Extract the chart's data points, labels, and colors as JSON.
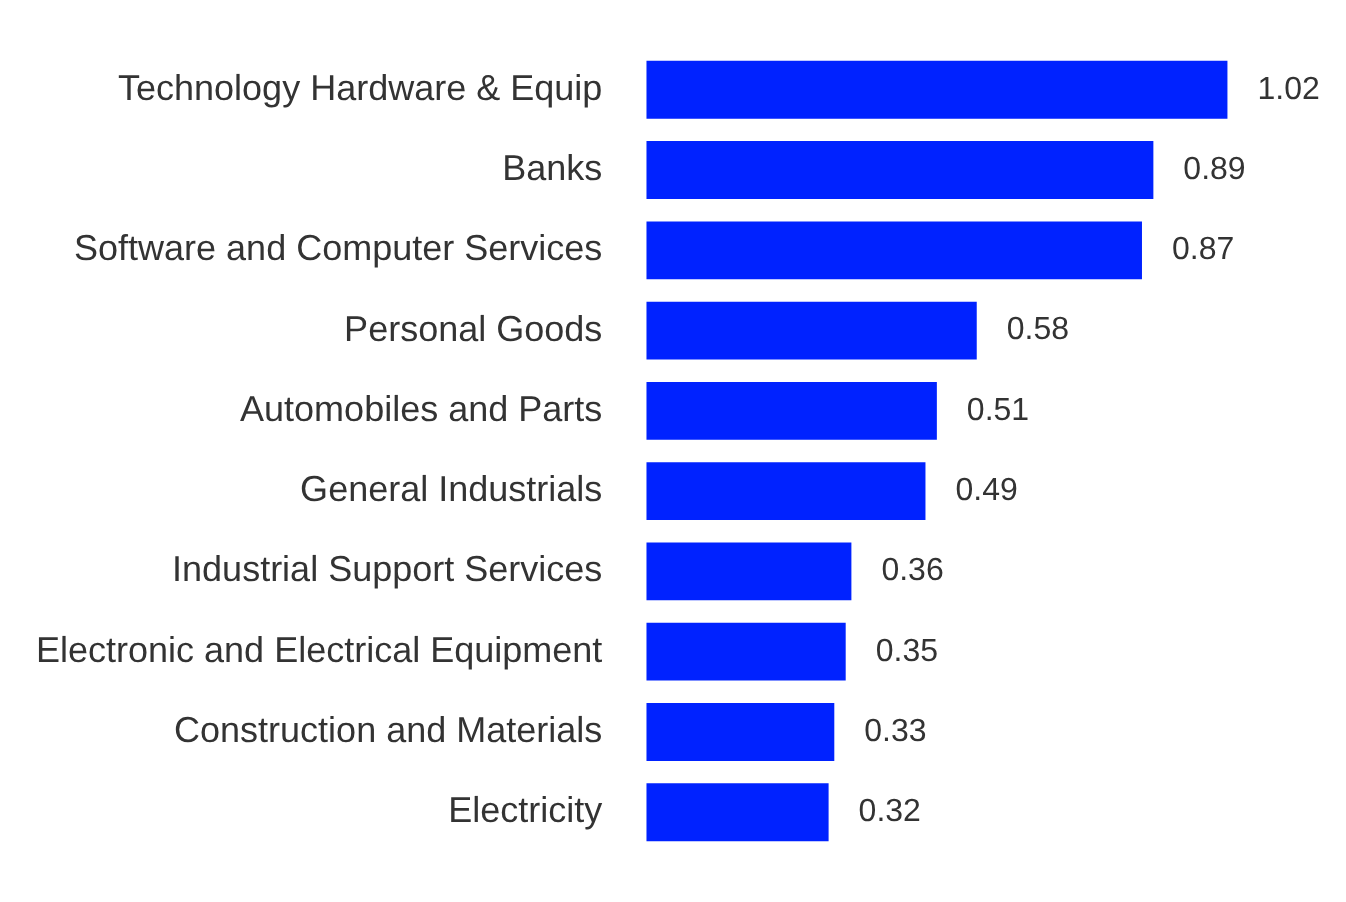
{
  "chart_data": {
    "type": "bar",
    "orientation": "horizontal",
    "categories": [
      "Technology Hardware & Equip",
      "Banks",
      "Software and Computer Services",
      "Personal Goods",
      "Automobiles and Parts",
      "General Industrials",
      "Industrial Support Services",
      "Electronic and Electrical Equipment",
      "Construction and Materials",
      "Electricity"
    ],
    "values": [
      1.02,
      0.89,
      0.87,
      0.58,
      0.51,
      0.49,
      0.36,
      0.35,
      0.33,
      0.32
    ],
    "color": "#0022ff",
    "data_labels": true,
    "tick_labels": "y"
  }
}
